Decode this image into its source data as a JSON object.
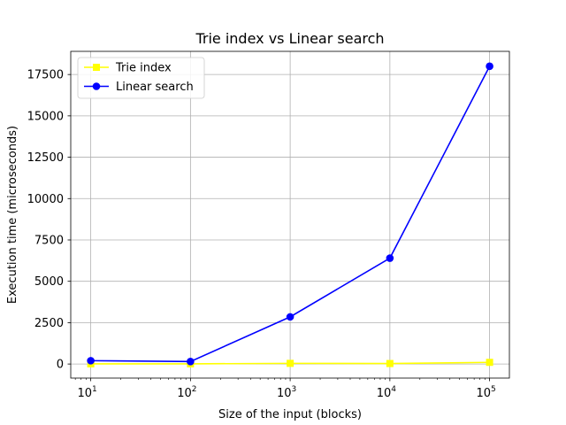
{
  "chart_data": {
    "type": "line",
    "title": "Trie index vs Linear search",
    "xlabel": "Size of the input (blocks)",
    "ylabel": "Execution time (microseconds)",
    "xscale": "log",
    "x": [
      10,
      100,
      1000,
      10000,
      100000
    ],
    "xlim": [
      6.3,
      158000
    ],
    "ylim": [
      -850,
      18900
    ],
    "x_ticks": [
      {
        "base": "10",
        "exp": "1"
      },
      {
        "base": "10",
        "exp": "2"
      },
      {
        "base": "10",
        "exp": "3"
      },
      {
        "base": "10",
        "exp": "4"
      },
      {
        "base": "10",
        "exp": "5"
      }
    ],
    "y_ticks": [
      "0",
      "2500",
      "5000",
      "7500",
      "10000",
      "12500",
      "15000",
      "17500"
    ],
    "y_tick_values": [
      0,
      2500,
      5000,
      7500,
      10000,
      12500,
      15000,
      17500
    ],
    "grid": true,
    "legend_position": "top-left",
    "series": [
      {
        "name": "Trie index",
        "color": "#ffff00",
        "marker": "square",
        "values": [
          10,
          10,
          40,
          30,
          100
        ]
      },
      {
        "name": "Linear search",
        "color": "#0000ff",
        "marker": "circle",
        "values": [
          200,
          150,
          2850,
          6400,
          18000
        ]
      }
    ]
  }
}
